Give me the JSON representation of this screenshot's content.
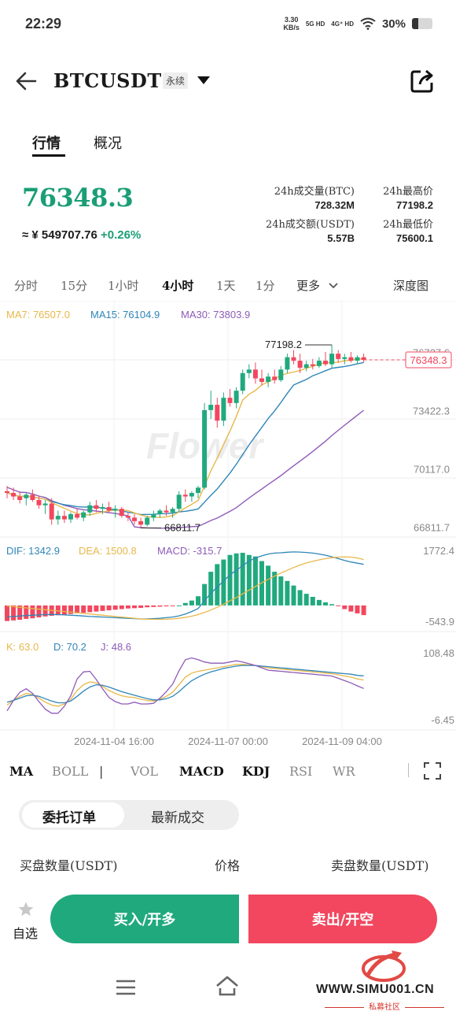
{
  "status_bar": {
    "time": "22:29",
    "speed_value": "3.30",
    "speed_unit": "KB/s",
    "net1": "5G HD",
    "net2": "4G⁺ HD",
    "battery": "30%",
    "battery_level": 0.3
  },
  "header": {
    "symbol": "BTCUSDT",
    "contract_type": "永续",
    "back_icon": "arrow-left-icon",
    "dropdown_icon": "caret-down-icon",
    "share_icon": "share-icon"
  },
  "tabs": [
    {
      "label": "行情",
      "active": true
    },
    {
      "label": "概况",
      "active": false
    }
  ],
  "price": {
    "last": "76348.3",
    "cny_approx": "≈ ¥ 549707.76",
    "change_pct": "+0.26%"
  },
  "stats": {
    "vol_btc_label": "24h成交量(BTC)",
    "vol_btc": "728.32M",
    "high_label": "24h最高价",
    "high": "77198.2",
    "turnover_label": "24h成交额(USDT)",
    "turnover": "5.57B",
    "low_label": "24h最低价",
    "low": "75600.1"
  },
  "timeframes": [
    {
      "label": "分时",
      "active": false
    },
    {
      "label": "15分",
      "active": false
    },
    {
      "label": "1小时",
      "active": false
    },
    {
      "label": "4小时",
      "active": true
    },
    {
      "label": "1天",
      "active": false
    },
    {
      "label": "1分",
      "active": false
    },
    {
      "label": "更多",
      "active": false
    }
  ],
  "depth_label": "深度图",
  "colors": {
    "up": "#21a97e",
    "down": "#f2475e",
    "ma7": "#e8b84a",
    "ma15": "#2f86b8",
    "ma30": "#8e5bb8"
  },
  "chart_data": [
    {
      "type": "candlestick",
      "legend": {
        "ma7": "MA7: 76507.0",
        "ma15": "MA15: 76104.9",
        "ma30": "MA30: 73803.9"
      },
      "price_ticks": [
        "76727.6",
        "73422.3",
        "70117.0",
        "66811.7"
      ],
      "current_price_tag": "76348.3",
      "current_price": 76348.3,
      "high_marker": {
        "label": "77198.2",
        "value": 77198.2
      },
      "low_marker": {
        "label": "66811.7",
        "value": 66811.7
      },
      "x_labels": [
        "2024-11-04 16:00",
        "2024-11-07 00:00",
        "2024-11-09 04:00"
      ],
      "ylim": [
        66300,
        79700
      ],
      "watermark": "Flower",
      "candles": [
        [
          68900,
          69200,
          68500,
          68800
        ],
        [
          68800,
          69100,
          68400,
          68600
        ],
        [
          68600,
          68900,
          68200,
          68400
        ],
        [
          68500,
          68800,
          68100,
          68700
        ],
        [
          68700,
          69000,
          68300,
          68400
        ],
        [
          68400,
          68600,
          67900,
          68100
        ],
        [
          68100,
          68400,
          67600,
          68200
        ],
        [
          68200,
          68500,
          67000,
          67300
        ],
        [
          67300,
          67800,
          67000,
          67500
        ],
        [
          67500,
          67800,
          67100,
          67300
        ],
        [
          67300,
          67700,
          67100,
          67600
        ],
        [
          67600,
          67900,
          67300,
          67400
        ],
        [
          67400,
          67800,
          67200,
          67700
        ],
        [
          67700,
          68300,
          67500,
          68100
        ],
        [
          68100,
          68400,
          67700,
          67900
        ],
        [
          67900,
          68200,
          67600,
          68000
        ],
        [
          68000,
          68300,
          67700,
          67800
        ],
        [
          67800,
          68100,
          67400,
          67900
        ],
        [
          67900,
          68000,
          67400,
          67500
        ],
        [
          67500,
          67700,
          67200,
          67400
        ],
        [
          67400,
          67600,
          67000,
          67200
        ],
        [
          67200,
          67400,
          66811.7,
          67000
        ],
        [
          67000,
          67500,
          66900,
          67400
        ],
        [
          67400,
          67800,
          67200,
          67600
        ],
        [
          67600,
          67900,
          67400,
          67800
        ],
        [
          67800,
          68100,
          67500,
          67700
        ],
        [
          67700,
          68000,
          67400,
          67900
        ],
        [
          67900,
          68900,
          67700,
          68700
        ],
        [
          68700,
          69000,
          68300,
          68600
        ],
        [
          68600,
          68900,
          68300,
          68800
        ],
        [
          68800,
          69200,
          68500,
          69100
        ],
        [
          69100,
          73900,
          69000,
          73500
        ],
        [
          73500,
          74600,
          73000,
          73800
        ],
        [
          73800,
          74200,
          72500,
          72900
        ],
        [
          72900,
          74500,
          72600,
          74200
        ],
        [
          74200,
          74700,
          73700,
          73900
        ],
        [
          73900,
          74800,
          73600,
          74600
        ],
        [
          74600,
          75800,
          74400,
          75600
        ],
        [
          75600,
          76100,
          75300,
          75800
        ],
        [
          75800,
          76200,
          75000,
          75300
        ],
        [
          75300,
          75800,
          74900,
          75100
        ],
        [
          75100,
          75600,
          74800,
          75400
        ],
        [
          75400,
          75800,
          75000,
          75200
        ],
        [
          75200,
          76000,
          75100,
          75800
        ],
        [
          75800,
          76700,
          75600,
          76500
        ],
        [
          76500,
          76900,
          76100,
          76300
        ],
        [
          76300,
          76700,
          75600,
          75900
        ],
        [
          75900,
          76300,
          75700,
          76100
        ],
        [
          76100,
          76400,
          75800,
          76000
        ],
        [
          76000,
          76500,
          75900,
          76300
        ],
        [
          76300,
          76800,
          76000,
          76100
        ],
        [
          76100,
          77198.2,
          75900,
          76700
        ],
        [
          76700,
          76900,
          76200,
          76400
        ],
        [
          76400,
          76700,
          76100,
          76500
        ],
        [
          76500,
          76800,
          76200,
          76300
        ],
        [
          76300,
          76600,
          76100,
          76500
        ],
        [
          76500,
          76700,
          76200,
          76348.3
        ]
      ]
    },
    {
      "type": "bar",
      "name": "MACD",
      "legend": {
        "dif": "DIF: 1342.9",
        "dea": "DEA: 1500.8",
        "macd": "MACD: -315.7"
      },
      "ticks": [
        "1772.4",
        "-543.9"
      ],
      "ylim": [
        -543.9,
        1772.4
      ],
      "histogram": [
        -510,
        -490,
        -470,
        -440,
        -420,
        -390,
        -360,
        -340,
        -320,
        -300,
        -280,
        -260,
        -240,
        -220,
        -200,
        -180,
        -160,
        -140,
        -120,
        -100,
        -90,
        -80,
        -60,
        -50,
        -40,
        -30,
        -20,
        0,
        80,
        160,
        300,
        700,
        1100,
        1350,
        1500,
        1650,
        1700,
        1720,
        1650,
        1600,
        1450,
        1300,
        1100,
        950,
        800,
        650,
        500,
        380,
        280,
        180,
        100,
        40,
        -20,
        -120,
        -200,
        -260,
        -315.7
      ],
      "dif": [
        -380,
        -360,
        -345,
        -330,
        -320,
        -310,
        -300,
        -295,
        -300,
        -310,
        -320,
        -330,
        -345,
        -360,
        -370,
        -380,
        -390,
        -400,
        -410,
        -420,
        -430,
        -440,
        -440,
        -430,
        -420,
        -400,
        -380,
        -340,
        -280,
        -200,
        -100,
        150,
        400,
        600,
        800,
        1000,
        1150,
        1300,
        1450,
        1550,
        1620,
        1680,
        1710,
        1720,
        1740,
        1750,
        1745,
        1730,
        1710,
        1680,
        1640,
        1590,
        1530,
        1470,
        1420,
        1380,
        1342.9
      ],
      "dea": [
        -20,
        -40,
        -60,
        -80,
        -100,
        -120,
        -140,
        -160,
        -180,
        -200,
        -220,
        -240,
        -260,
        -280,
        -300,
        -320,
        -340,
        -360,
        -380,
        -400,
        -420,
        -440,
        -450,
        -455,
        -455,
        -450,
        -440,
        -420,
        -390,
        -350,
        -300,
        -230,
        -150,
        -60,
        40,
        150,
        260,
        380,
        500,
        620,
        740,
        850,
        960,
        1060,
        1150,
        1240,
        1320,
        1390,
        1440,
        1490,
        1530,
        1560,
        1580,
        1590,
        1580,
        1550,
        1500.8
      ]
    },
    {
      "type": "line",
      "name": "KDJ",
      "legend": {
        "k": "K: 63.0",
        "d": "D: 70.2",
        "j": "J: 48.6"
      },
      "ticks": [
        "108.48",
        "-6.45"
      ],
      "ylim": [
        -6.45,
        108.48
      ],
      "k": [
        20,
        28,
        35,
        40,
        38,
        32,
        25,
        20,
        18,
        22,
        30,
        45,
        55,
        60,
        58,
        52,
        45,
        40,
        36,
        34,
        33,
        30,
        28,
        27,
        30,
        35,
        42,
        55,
        68,
        75,
        78,
        80,
        82,
        84,
        86,
        88,
        90,
        90,
        89,
        88,
        86,
        84,
        83,
        82,
        81,
        80,
        79,
        78,
        77,
        76,
        75,
        74,
        72,
        70,
        68,
        65,
        63.0
      ],
      "d": [
        25,
        28,
        32,
        36,
        37,
        35,
        31,
        27,
        24,
        24,
        27,
        35,
        44,
        51,
        55,
        54,
        51,
        47,
        43,
        40,
        37,
        34,
        31,
        29,
        29,
        31,
        35,
        43,
        53,
        62,
        68,
        73,
        77,
        80,
        83,
        85,
        87,
        88,
        88,
        88,
        87,
        86,
        85,
        84,
        83,
        82,
        81,
        80,
        79,
        78,
        77,
        76,
        75,
        74,
        73,
        71,
        70.2
      ],
      "j": [
        10,
        28,
        42,
        48,
        40,
        26,
        13,
        6,
        6,
        18,
        36,
        65,
        77,
        78,
        64,
        48,
        33,
        26,
        22,
        22,
        25,
        22,
        22,
        23,
        32,
        43,
        56,
        79,
        98,
        101,
        98,
        94,
        92,
        92,
        92,
        94,
        96,
        94,
        91,
        88,
        84,
        80,
        79,
        78,
        77,
        76,
        75,
        74,
        73,
        72,
        71,
        70,
        66,
        62,
        58,
        53,
        48.6
      ]
    }
  ],
  "indicators": [
    {
      "label": "MA",
      "on": true
    },
    {
      "label": "BOLL",
      "on": false
    },
    {
      "label": "|",
      "on": false
    },
    {
      "label": "VOL",
      "on": false
    },
    {
      "label": "MACD",
      "on": true
    },
    {
      "label": "KDJ",
      "on": true
    },
    {
      "label": "RSI",
      "on": false
    },
    {
      "label": "WR",
      "on": false
    }
  ],
  "fullscreen_icon": "fullscreen-icon",
  "order_tabs": [
    {
      "label": "委托订单",
      "active": true
    },
    {
      "label": "最新成交",
      "active": false
    }
  ],
  "orderbook_headers": {
    "bid_qty": "买盘数量(USDT)",
    "price": "价格",
    "ask_qty": "卖盘数量(USDT)"
  },
  "bottom": {
    "fav_label": "自选",
    "buy_label": "买入/开多",
    "sell_label": "卖出/开空"
  },
  "nav": {
    "menu_icon": "menu-icon",
    "home_icon": "home-icon"
  },
  "watermark": {
    "url": "WWW.SIMU001.CN",
    "sub": "私募社区"
  }
}
